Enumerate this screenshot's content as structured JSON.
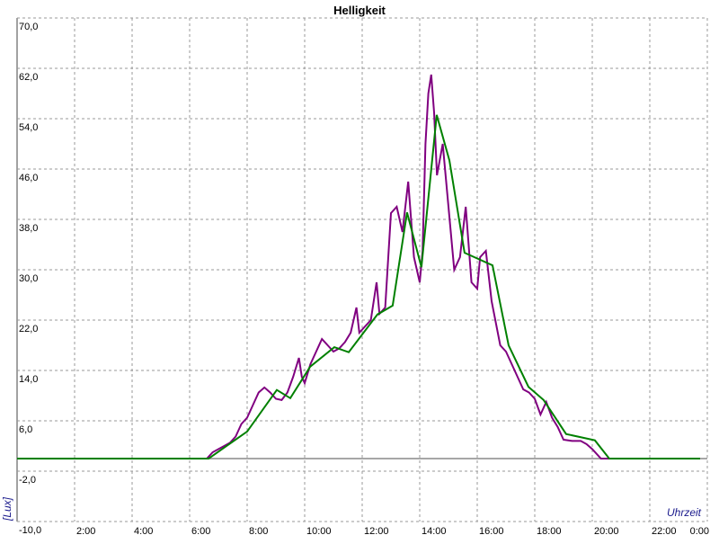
{
  "chart_data": {
    "type": "line",
    "title": "Helligkeit",
    "y_label": "[Lux]",
    "x_label": "Uhrzeit",
    "xlim": [
      0,
      24
    ],
    "ylim": [
      -10,
      70
    ],
    "grid": true,
    "xticks": [
      {
        "value": 2,
        "label": "2:00"
      },
      {
        "value": 4,
        "label": "4:00"
      },
      {
        "value": 6,
        "label": "6:00"
      },
      {
        "value": 8,
        "label": "8:00"
      },
      {
        "value": 10,
        "label": "10:00"
      },
      {
        "value": 12,
        "label": "12:00"
      },
      {
        "value": 14,
        "label": "14:00"
      },
      {
        "value": 16,
        "label": "16:00"
      },
      {
        "value": 18,
        "label": "18:00"
      },
      {
        "value": 20,
        "label": "20:00"
      },
      {
        "value": 22,
        "label": "22:00"
      },
      {
        "value": 24,
        "label": "0:00"
      }
    ],
    "yticks": [
      {
        "value": 70,
        "label": "70,0"
      },
      {
        "value": 62,
        "label": "62,0"
      },
      {
        "value": 54,
        "label": "54,0"
      },
      {
        "value": 46,
        "label": "46,0"
      },
      {
        "value": 38,
        "label": "38,0"
      },
      {
        "value": 30,
        "label": "30,0"
      },
      {
        "value": 22,
        "label": "22,0"
      },
      {
        "value": 14,
        "label": "14,0"
      },
      {
        "value": 6,
        "label": "6,0"
      },
      {
        "value": -2,
        "label": "-2,0"
      },
      {
        "value": -10,
        "label": "-10,0"
      }
    ],
    "series": [
      {
        "color": "#800080",
        "x": [
          0,
          6.6,
          6.8,
          7.0,
          7.2,
          7.4,
          7.6,
          7.8,
          8.0,
          8.2,
          8.4,
          8.6,
          8.8,
          9.0,
          9.2,
          9.4,
          9.6,
          9.8,
          9.9,
          10.0,
          10.2,
          10.4,
          10.6,
          10.8,
          11.0,
          11.2,
          11.4,
          11.6,
          11.8,
          11.9,
          12.1,
          12.3,
          12.5,
          12.6,
          12.8,
          13.0,
          13.2,
          13.4,
          13.6,
          13.8,
          14.0,
          14.1,
          14.2,
          14.3,
          14.4,
          14.5,
          14.6,
          14.8,
          15.0,
          15.2,
          15.4,
          15.6,
          15.8,
          16.0,
          16.1,
          16.3,
          16.5,
          16.8,
          17.0,
          17.2,
          17.4,
          17.6,
          17.8,
          18.0,
          18.2,
          18.4,
          18.6,
          18.8,
          19.0,
          19.3,
          19.6,
          19.8,
          20.0,
          20.3,
          23.75
        ],
        "values": [
          0,
          0,
          1,
          1.5,
          2,
          2.5,
          3.5,
          5.5,
          6.5,
          8.5,
          10.5,
          11.3,
          10.5,
          9.5,
          9.3,
          10.5,
          13,
          16,
          13,
          12,
          15,
          17,
          19,
          18,
          17,
          17.5,
          18.5,
          20,
          24,
          20,
          21,
          22,
          28,
          23,
          24,
          39,
          40,
          36,
          44,
          32,
          28,
          33,
          50,
          58,
          61,
          55,
          45,
          50,
          40,
          30,
          32,
          40,
          28,
          27,
          32,
          33,
          25,
          18,
          17,
          15,
          13,
          11,
          10.5,
          9.5,
          7,
          9,
          6.5,
          5,
          3,
          2.8,
          2.8,
          2.3,
          1.5,
          0,
          0
        ]
      },
      {
        "color": "#008000",
        "x": [
          0,
          6.66,
          8.0,
          9.03,
          9.5,
          10.19,
          11.03,
          11.53,
          12.53,
          13.06,
          13.56,
          14.06,
          14.59,
          15.03,
          15.56,
          16.53,
          17.09,
          17.78,
          18.31,
          19.09,
          20.09,
          20.59,
          23.75
        ],
        "values": [
          0,
          0,
          4.3,
          10.9,
          9.6,
          14.6,
          17.7,
          16.9,
          22.9,
          24.3,
          39.1,
          30.4,
          54.6,
          47.4,
          32.7,
          30.7,
          18,
          11.4,
          9.3,
          3.9,
          2.9,
          0,
          0
        ]
      }
    ]
  }
}
